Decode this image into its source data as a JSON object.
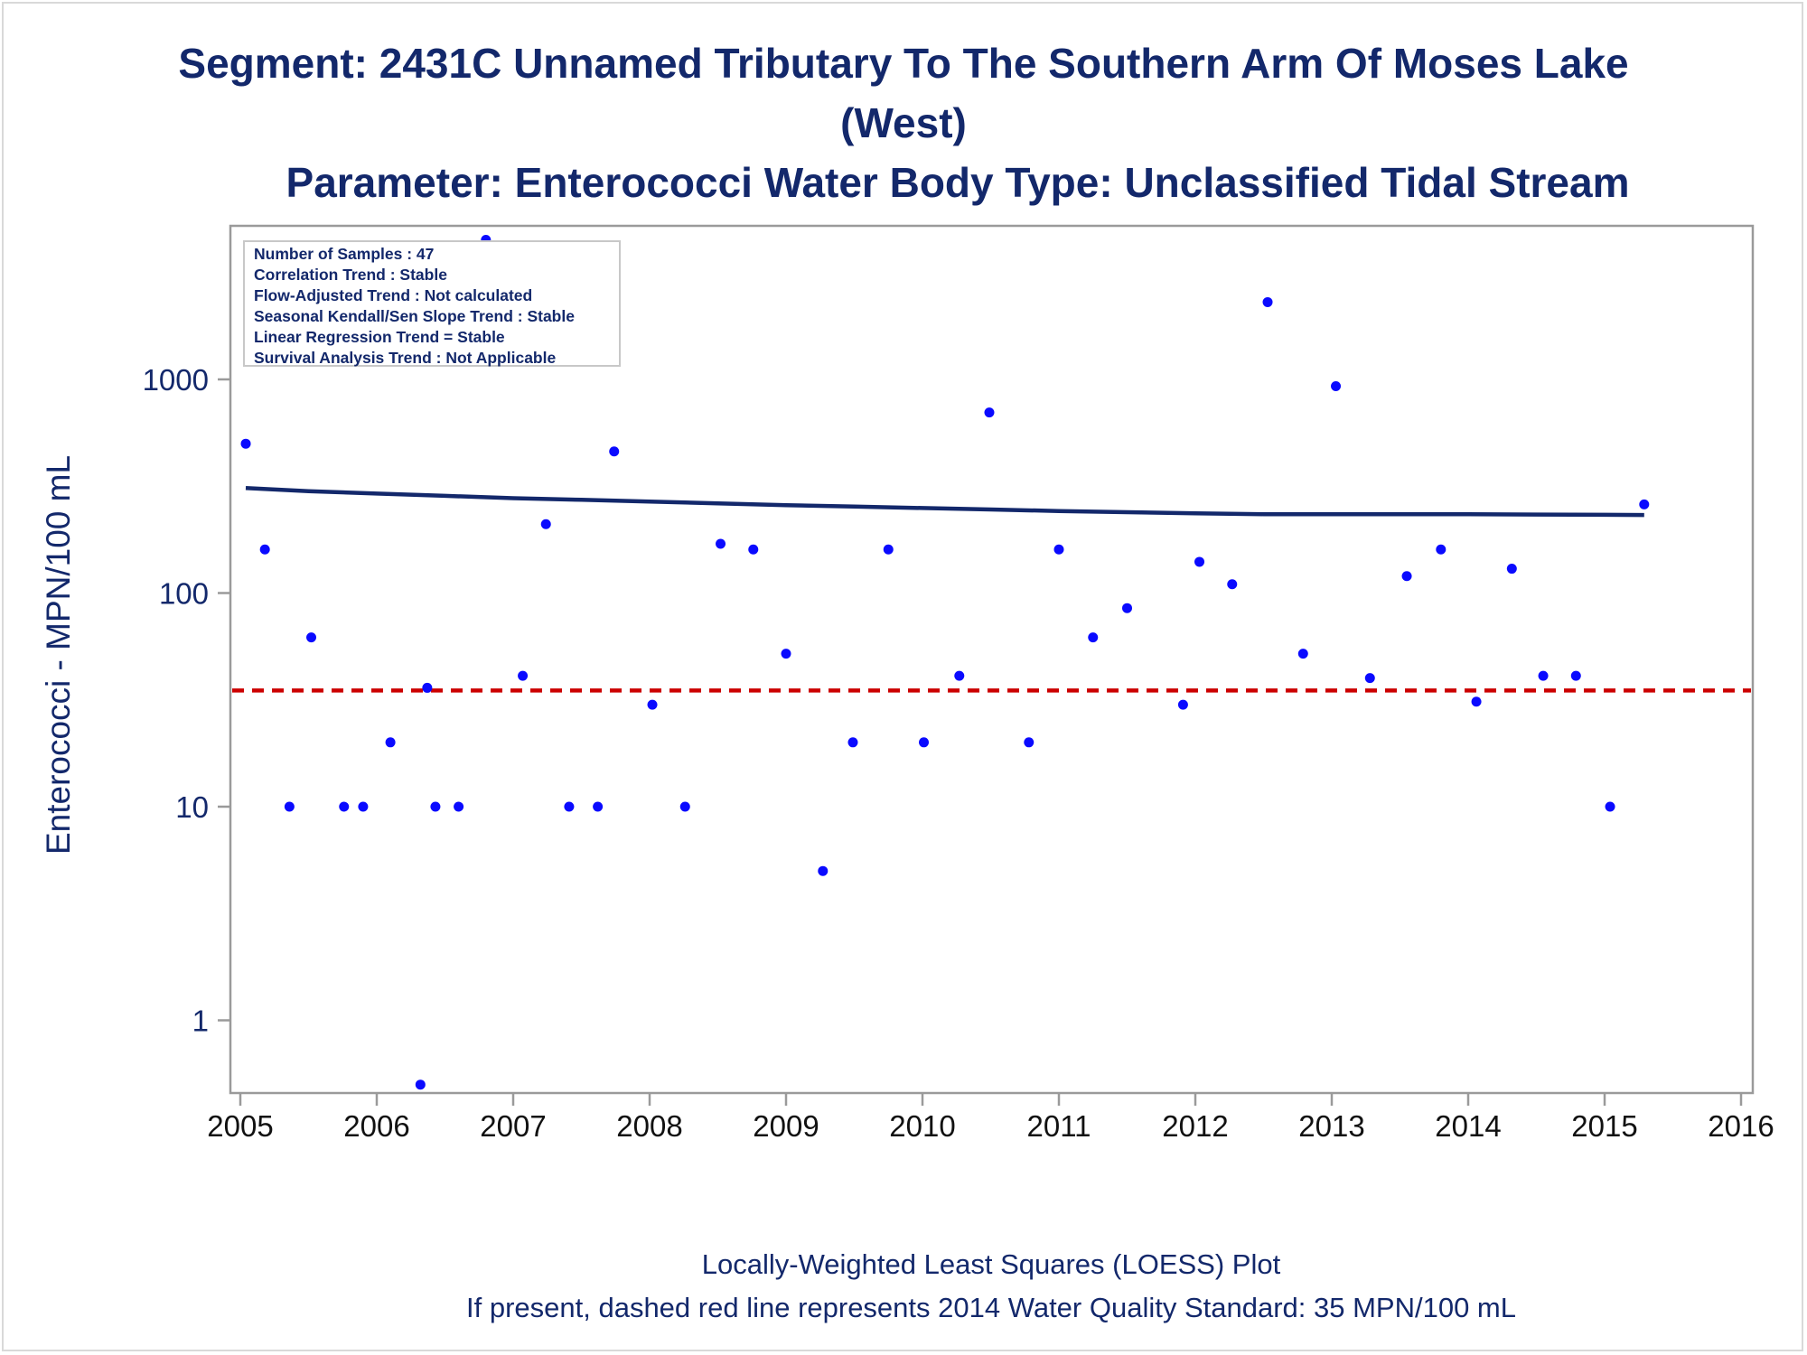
{
  "titles": {
    "line1": "Segment: 2431C  Unnamed Tributary To The Southern Arm Of Moses Lake",
    "line2": "(West)",
    "line3": "Parameter: Enterococci   Water Body Type: Unclassified Tidal Stream"
  },
  "stats_box": [
    "Number of Samples : 47",
    "Correlation Trend : Stable",
    "Flow-Adjusted Trend : Not calculated",
    "Seasonal Kendall/Sen Slope Trend : Stable",
    "Linear Regression Trend = Stable",
    "Survival Analysis Trend : Not Applicable"
  ],
  "footnotes": {
    "line1": "Locally-Weighted Least Squares (LOESS) Plot",
    "line2": "If present, dashed red line represents 2014 Water Quality Standard: 35 MPN/100 mL"
  },
  "colors": {
    "title": "#13286b",
    "points": "#0a0aff",
    "loess": "#13286b",
    "standard": "#cc0000",
    "axis": "#9a9a9a"
  },
  "chart_data": {
    "type": "scatter",
    "ylabel": "Enterococci - MPN/100 mL",
    "xlabel": "",
    "y_scale": "log",
    "xlim": [
      2005,
      2016
    ],
    "ylim": [
      0.45,
      6000
    ],
    "x_ticks": [
      2005,
      2006,
      2007,
      2008,
      2009,
      2010,
      2011,
      2012,
      2013,
      2014,
      2015,
      2016
    ],
    "y_ticks": [
      1,
      10,
      100,
      1000
    ],
    "points": [
      [
        2005.04,
        500
      ],
      [
        2005.18,
        160
      ],
      [
        2005.36,
        10
      ],
      [
        2005.52,
        62
      ],
      [
        2005.76,
        10
      ],
      [
        2005.9,
        10
      ],
      [
        2006.1,
        20
      ],
      [
        2006.32,
        0.5
      ],
      [
        2006.37,
        36
      ],
      [
        2006.43,
        10
      ],
      [
        2006.6,
        10
      ],
      [
        2006.8,
        4500
      ],
      [
        2007.07,
        41
      ],
      [
        2007.24,
        210
      ],
      [
        2007.41,
        10
      ],
      [
        2007.62,
        10
      ],
      [
        2007.74,
        460
      ],
      [
        2008.02,
        30
      ],
      [
        2008.26,
        10
      ],
      [
        2008.52,
        170
      ],
      [
        2008.76,
        160
      ],
      [
        2009.0,
        52
      ],
      [
        2009.27,
        5
      ],
      [
        2009.49,
        20
      ],
      [
        2009.75,
        160
      ],
      [
        2010.01,
        20
      ],
      [
        2010.27,
        41
      ],
      [
        2010.49,
        700
      ],
      [
        2010.78,
        20
      ],
      [
        2011.0,
        160
      ],
      [
        2011.25,
        62
      ],
      [
        2011.5,
        85
      ],
      [
        2011.91,
        30
      ],
      [
        2012.03,
        140
      ],
      [
        2012.27,
        110
      ],
      [
        2012.53,
        2300
      ],
      [
        2012.79,
        52
      ],
      [
        2013.03,
        930
      ],
      [
        2013.28,
        40
      ],
      [
        2013.55,
        120
      ],
      [
        2013.8,
        160
      ],
      [
        2014.06,
        31
      ],
      [
        2014.32,
        130
      ],
      [
        2014.55,
        41
      ],
      [
        2014.79,
        41
      ],
      [
        2015.04,
        10
      ],
      [
        2015.29,
        260
      ]
    ],
    "loess": [
      [
        2005.04,
        310
      ],
      [
        2005.5,
        300
      ],
      [
        2006.0,
        292
      ],
      [
        2006.5,
        285
      ],
      [
        2007.0,
        278
      ],
      [
        2007.5,
        273
      ],
      [
        2008.0,
        268
      ],
      [
        2008.5,
        263
      ],
      [
        2009.0,
        258
      ],
      [
        2009.5,
        254
      ],
      [
        2010.0,
        250
      ],
      [
        2010.5,
        246
      ],
      [
        2011.0,
        242
      ],
      [
        2011.5,
        239
      ],
      [
        2012.0,
        236
      ],
      [
        2012.5,
        234
      ],
      [
        2013.0,
        234
      ],
      [
        2013.5,
        234
      ],
      [
        2014.0,
        234
      ],
      [
        2014.5,
        233
      ],
      [
        2015.29,
        232
      ]
    ],
    "standard_line": 35
  }
}
